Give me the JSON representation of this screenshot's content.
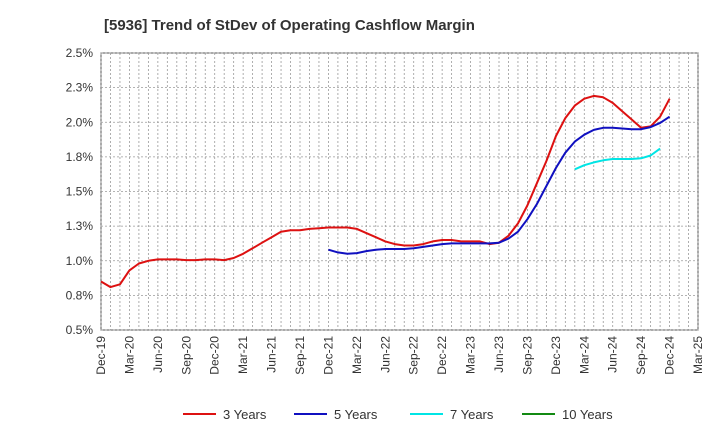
{
  "chart_data": {
    "type": "line",
    "title": "[5936]  Trend of StDev of Operating Cashflow Margin",
    "xlabel": "",
    "ylabel": "",
    "ylim": [
      0.5,
      2.5
    ],
    "y_ticks": [
      "0.5%",
      "0.8%",
      "1.0%",
      "1.3%",
      "1.5%",
      "1.8%",
      "2.0%",
      "2.3%",
      "2.5%"
    ],
    "y_tick_values": [
      0.5,
      0.75,
      1.0,
      1.25,
      1.5,
      1.75,
      2.0,
      2.25,
      2.5
    ],
    "x_ticks": [
      "Dec-19",
      "Mar-20",
      "Jun-20",
      "Sep-20",
      "Dec-20",
      "Mar-21",
      "Jun-21",
      "Sep-21",
      "Dec-21",
      "Mar-22",
      "Jun-22",
      "Sep-22",
      "Dec-22",
      "Mar-23",
      "Jun-23",
      "Sep-23",
      "Dec-23",
      "Mar-24",
      "Jun-24",
      "Sep-24",
      "Dec-24",
      "Mar-25"
    ],
    "grid": true,
    "legend_position": "bottom",
    "series": [
      {
        "name": "3 Years",
        "color": "#dd1111",
        "start_index": 0,
        "values": [
          0.85,
          0.81,
          0.83,
          0.93,
          0.98,
          1.0,
          1.01,
          1.01,
          1.01,
          1.005,
          1.005,
          1.01,
          1.01,
          1.005,
          1.02,
          1.05,
          1.09,
          1.13,
          1.17,
          1.21,
          1.22,
          1.22,
          1.23,
          1.235,
          1.24,
          1.24,
          1.24,
          1.23,
          1.2,
          1.17,
          1.14,
          1.12,
          1.11,
          1.11,
          1.12,
          1.14,
          1.15,
          1.15,
          1.14,
          1.14,
          1.14,
          1.12,
          1.13,
          1.18,
          1.27,
          1.4,
          1.56,
          1.72,
          1.9,
          2.03,
          2.12,
          2.17,
          2.19,
          2.18,
          2.14,
          2.08,
          2.02,
          1.96,
          1.97,
          2.04,
          2.17
        ]
      },
      {
        "name": "5 Years",
        "color": "#1010c0",
        "start_index": 24,
        "values": [
          1.08,
          1.06,
          1.05,
          1.055,
          1.07,
          1.08,
          1.085,
          1.085,
          1.085,
          1.09,
          1.1,
          1.11,
          1.12,
          1.125,
          1.125,
          1.125,
          1.125,
          1.125,
          1.13,
          1.16,
          1.21,
          1.3,
          1.41,
          1.54,
          1.67,
          1.78,
          1.86,
          1.91,
          1.945,
          1.96,
          1.96,
          1.955,
          1.95,
          1.95,
          1.965,
          1.995,
          2.04
        ]
      },
      {
        "name": "7 Years",
        "color": "#00e5e5",
        "start_index": 50,
        "values": [
          1.66,
          1.69,
          1.71,
          1.725,
          1.735,
          1.735,
          1.735,
          1.74,
          1.76,
          1.81
        ]
      },
      {
        "name": "10 Years",
        "color": "#138a13",
        "start_index": 0,
        "values": []
      }
    ]
  }
}
